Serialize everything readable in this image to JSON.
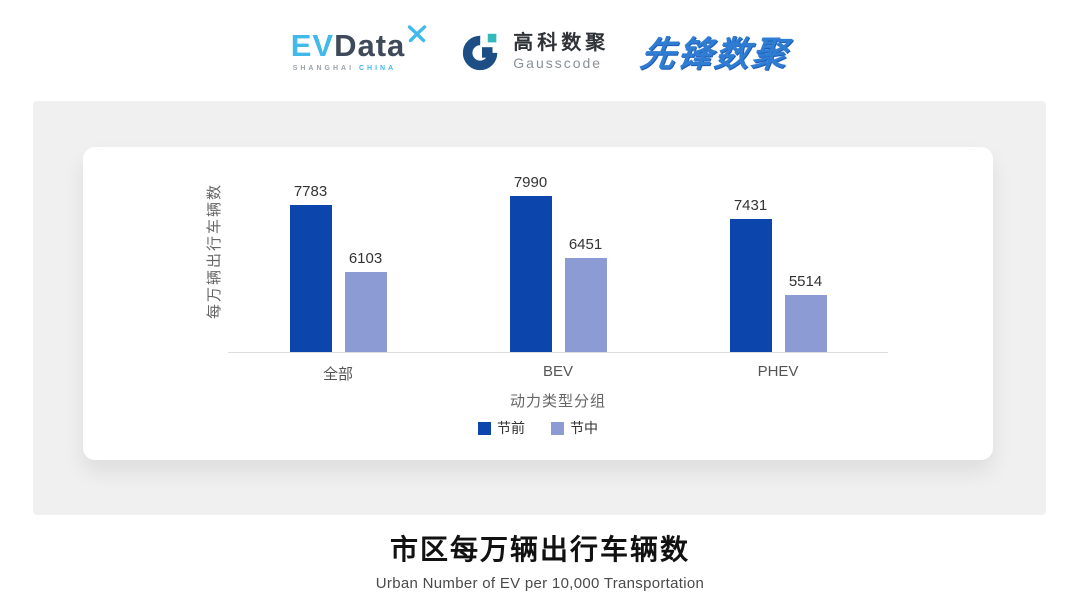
{
  "header": {
    "evdata": {
      "name_primary": "EV",
      "name_secondary": "Data",
      "tagline_left": "SHANGHAI",
      "tagline_right": "CHINA"
    },
    "gausscode": {
      "name_cn": "高科数聚",
      "name_en": "Gausscode"
    },
    "pioneer": {
      "name": "先锋数聚"
    }
  },
  "chart_data": {
    "type": "bar",
    "title": "市区每万辆出行车辆数",
    "subtitle": "Urban Number of EV per 10,000 Transportation",
    "xlabel": "动力类型分组",
    "ylabel": "每万辆出行车辆数",
    "categories": [
      "全部",
      "BEV",
      "PHEV"
    ],
    "series": [
      {
        "name": "节前",
        "color": "#0c45ab",
        "values": [
          7783,
          7990,
          7431
        ]
      },
      {
        "name": "节中",
        "color": "#8d9bd4",
        "values": [
          6103,
          6451,
          5514
        ]
      }
    ],
    "ylim": [
      4100,
      8850
    ],
    "grid": false,
    "legend_position": "bottom",
    "value_labels": true
  },
  "colors": {
    "evdata_blue": "#41b9e9",
    "evdata_dark": "#3e4a59",
    "gauss_navy": "#1d4f86",
    "gauss_teal": "#33b8bc",
    "pioneer_blue": "#2f7dd2",
    "panel_bg": "#f0f0f0",
    "axis_line": "#dddddd"
  }
}
